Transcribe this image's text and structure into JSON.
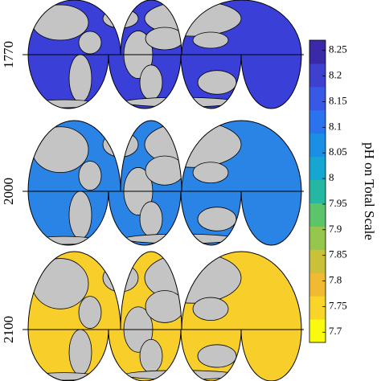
{
  "panels": [
    {
      "label": "1770",
      "ocean_color": "#3a3fd8"
    },
    {
      "label": "2000",
      "ocean_color": "#2a84e6"
    },
    {
      "label": "2100",
      "ocean_color": "#f8cf2a"
    }
  ],
  "colorbar": {
    "label": "pH on Total Scale",
    "lim": [
      7.68,
      8.27
    ],
    "ticks": [
      7.7,
      7.75,
      7.8,
      7.85,
      7.9,
      7.95,
      8,
      8.05,
      8.1,
      8.15,
      8.2,
      8.25
    ],
    "colors": [
      "#fafa0f",
      "#f9d52a",
      "#f0bb32",
      "#cbc03a",
      "#97c64c",
      "#5cc46a",
      "#24b8a2",
      "#16a6d2",
      "#1a8fe6",
      "#2a72ee",
      "#3858e6",
      "#3e41d0",
      "#3b2aa8"
    ]
  }
}
